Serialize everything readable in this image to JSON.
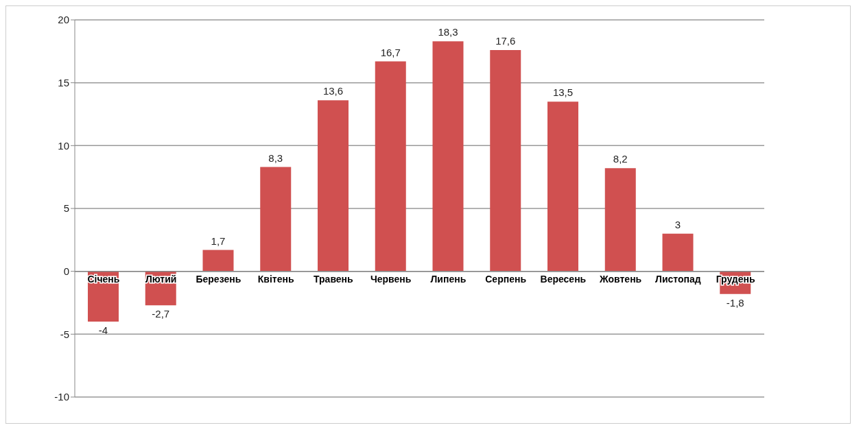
{
  "chart_data": {
    "type": "bar",
    "categories": [
      "Січень",
      "Лютий",
      "Березень",
      "Квітень",
      "Травень",
      "Червень",
      "Липень",
      "Серпень",
      "Вересень",
      "Жовтень",
      "Листопад",
      "Грудень"
    ],
    "values": [
      -4,
      -2.7,
      1.7,
      8.3,
      13.6,
      16.7,
      18.3,
      17.6,
      13.5,
      8.2,
      3,
      -1.8
    ],
    "value_labels": [
      "-4",
      "-2,7",
      "1,7",
      "8,3",
      "13,6",
      "16,7",
      "18,3",
      "17,6",
      "13,5",
      "8,2",
      "3",
      "-1,8"
    ],
    "color": "#d05050",
    "ylim": [
      -10,
      20
    ],
    "yticks": [
      -10,
      -5,
      0,
      5,
      10,
      15,
      20
    ],
    "grid": "y"
  }
}
